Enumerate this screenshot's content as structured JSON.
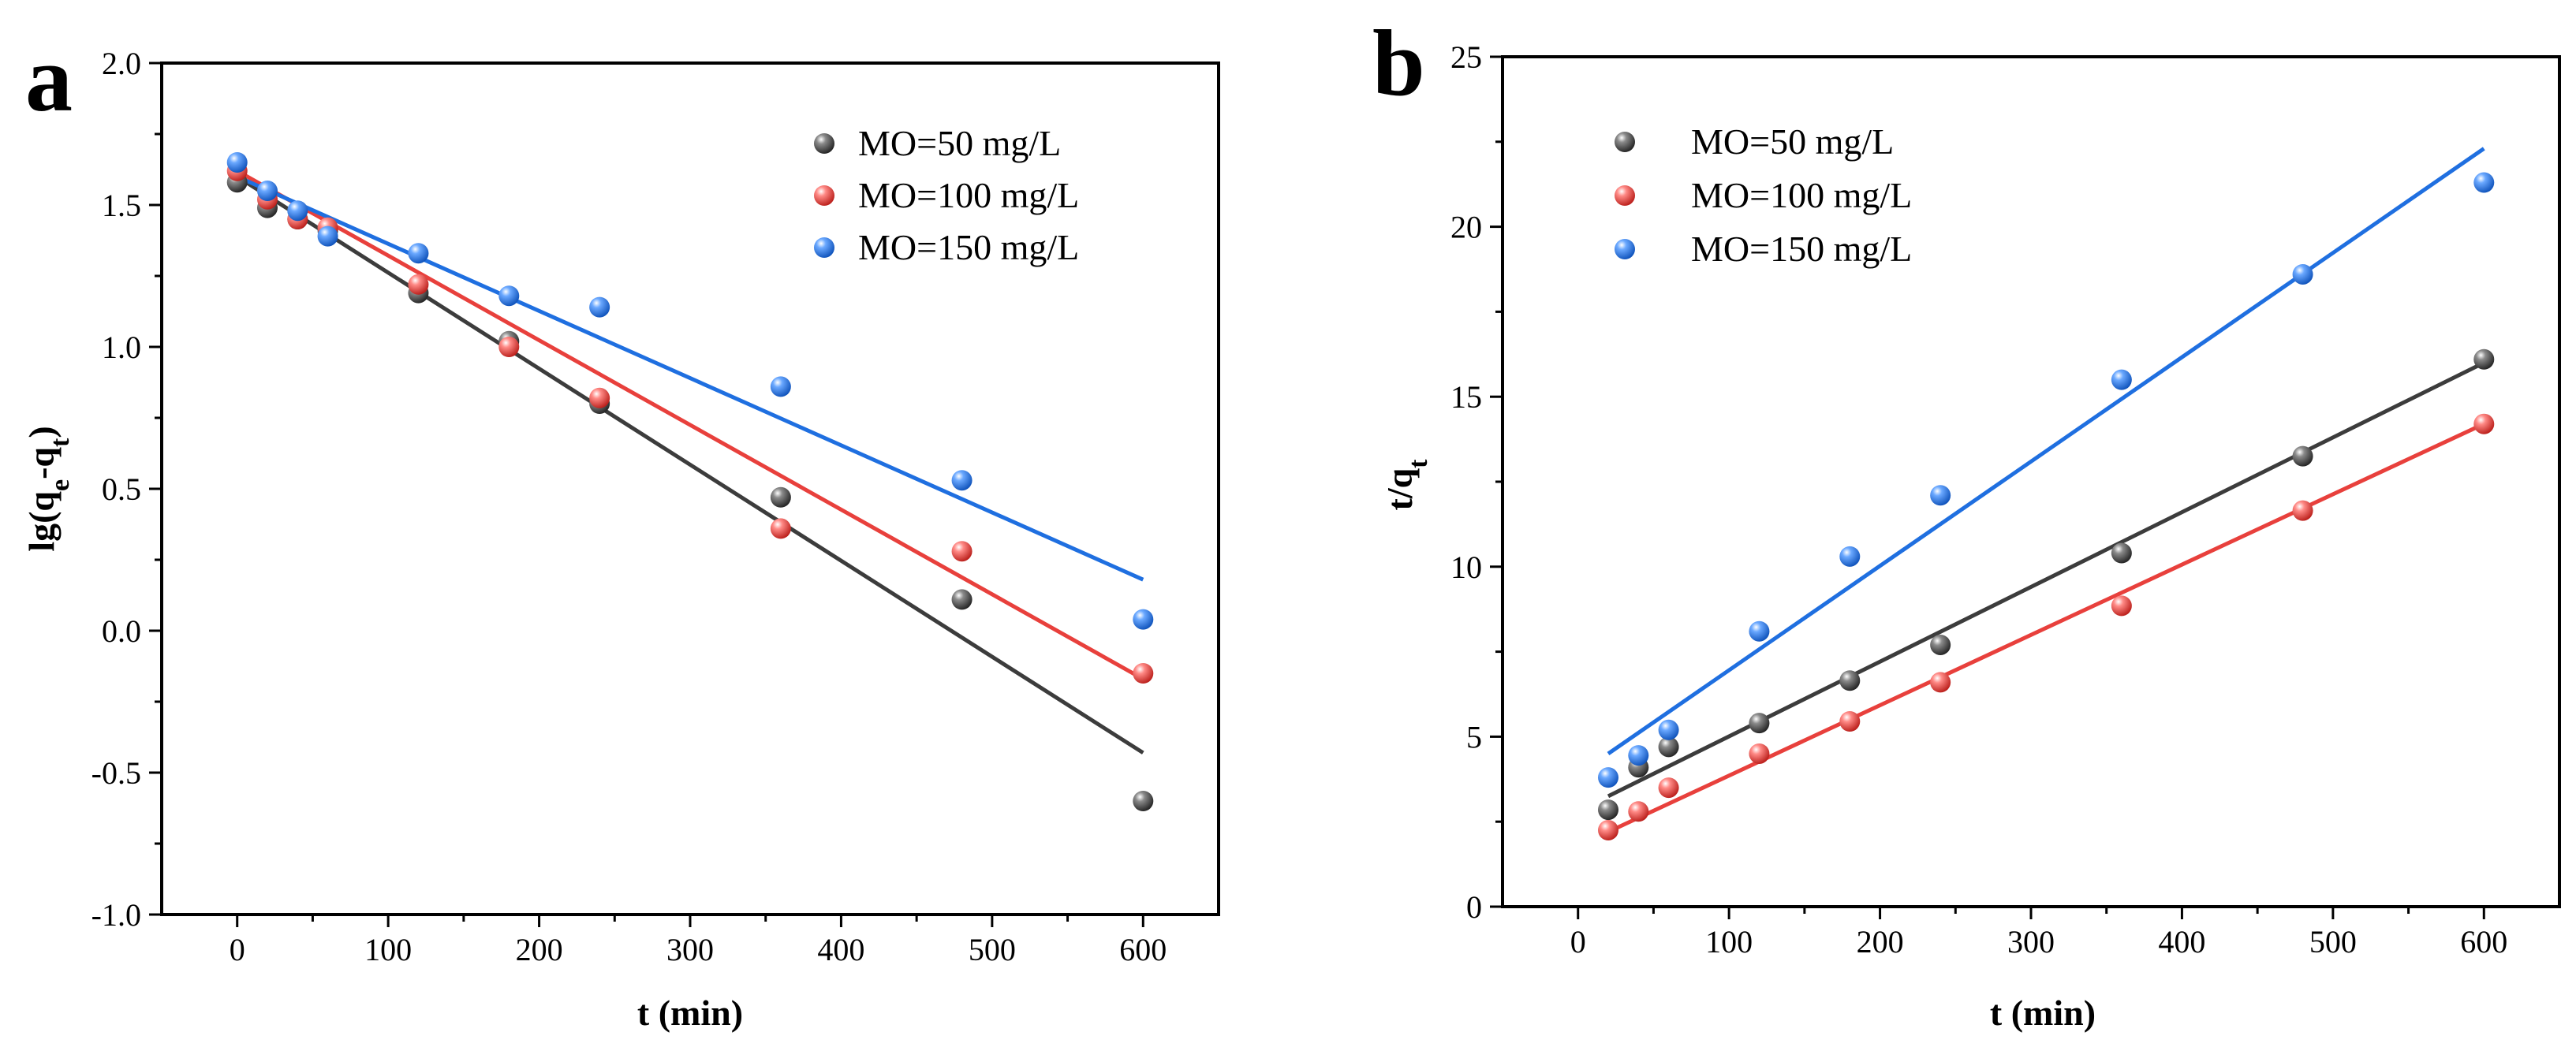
{
  "chart_data": [
    {
      "panel": "a",
      "type": "scatter",
      "xlabel": "t (min)",
      "ylabel": "lg(q_e-q_t)",
      "ylabel_main": "lg(q",
      "ylabel_sub1": "e",
      "ylabel_mid": "-q",
      "ylabel_sub2": "t",
      "ylabel_end": ")",
      "xlim": [
        -50,
        650
      ],
      "ylim": [
        -1.0,
        2.0
      ],
      "xticks": [
        0,
        100,
        200,
        300,
        400,
        500,
        600
      ],
      "yticks": [
        -1.0,
        -0.5,
        0.0,
        0.5,
        1.0,
        1.5,
        2.0
      ],
      "ytick_labels": [
        "-1.0",
        "-0.5",
        "0.0",
        "0.5",
        "1.0",
        "1.5",
        "2.0"
      ],
      "legend_position": "top-right",
      "series": [
        {
          "name": "MO=50 mg/L",
          "color": "#3c3c3c",
          "x": [
            0,
            20,
            40,
            60,
            120,
            180,
            240,
            360,
            480,
            600
          ],
          "y": [
            1.58,
            1.49,
            1.45,
            1.41,
            1.19,
            1.02,
            0.8,
            0.47,
            0.11,
            -0.6
          ],
          "fit": [
            [
              0,
              1.6
            ],
            [
              600,
              -0.43
            ]
          ]
        },
        {
          "name": "MO=100 mg/L",
          "color": "#e8403c",
          "x": [
            0,
            20,
            40,
            60,
            120,
            180,
            240,
            360,
            480,
            600
          ],
          "y": [
            1.62,
            1.52,
            1.45,
            1.42,
            1.22,
            1.0,
            0.82,
            0.36,
            0.28,
            -0.15
          ],
          "fit": [
            [
              0,
              1.62
            ],
            [
              600,
              -0.17
            ]
          ]
        },
        {
          "name": "MO=150 mg/L",
          "color": "#1f6fe0",
          "x": [
            0,
            20,
            40,
            60,
            120,
            180,
            240,
            360,
            480,
            600
          ],
          "y": [
            1.65,
            1.55,
            1.48,
            1.39,
            1.33,
            1.18,
            1.14,
            0.86,
            0.53,
            0.04
          ],
          "fit": [
            [
              0,
              1.6
            ],
            [
              600,
              0.18
            ]
          ]
        }
      ]
    },
    {
      "panel": "b",
      "type": "scatter",
      "xlabel": "t (min)",
      "ylabel": "t/q_t",
      "ylabel_main": "t/q",
      "ylabel_sub1": "t",
      "xlim": [
        -50,
        650
      ],
      "ylim": [
        0,
        25
      ],
      "xticks": [
        0,
        100,
        200,
        300,
        400,
        500,
        600
      ],
      "yticks": [
        0,
        5,
        10,
        15,
        20,
        25
      ],
      "ytick_labels": [
        "0",
        "5",
        "10",
        "15",
        "20",
        "25"
      ],
      "legend_position": "top-left",
      "series": [
        {
          "name": "MO=50 mg/L",
          "color": "#3c3c3c",
          "x": [
            20,
            40,
            60,
            120,
            180,
            240,
            360,
            480,
            600
          ],
          "y": [
            2.85,
            4.1,
            4.7,
            5.4,
            6.65,
            7.7,
            10.4,
            13.25,
            16.1
          ],
          "fit": [
            [
              20,
              3.25
            ],
            [
              600,
              16.0
            ]
          ]
        },
        {
          "name": "MO=100 mg/L",
          "color": "#e8403c",
          "x": [
            20,
            40,
            60,
            120,
            180,
            240,
            360,
            480,
            600
          ],
          "y": [
            2.25,
            2.8,
            3.5,
            4.5,
            5.45,
            6.6,
            8.85,
            11.65,
            14.2
          ],
          "fit": [
            [
              20,
              2.2
            ],
            [
              600,
              14.2
            ]
          ]
        },
        {
          "name": "MO=150 mg/L",
          "color": "#1f6fe0",
          "x": [
            20,
            40,
            60,
            120,
            180,
            240,
            360,
            480,
            600
          ],
          "y": [
            3.8,
            4.45,
            5.2,
            8.1,
            10.3,
            12.1,
            15.5,
            18.6,
            21.3
          ],
          "fit": [
            [
              20,
              4.5
            ],
            [
              600,
              22.3
            ]
          ]
        }
      ]
    }
  ]
}
